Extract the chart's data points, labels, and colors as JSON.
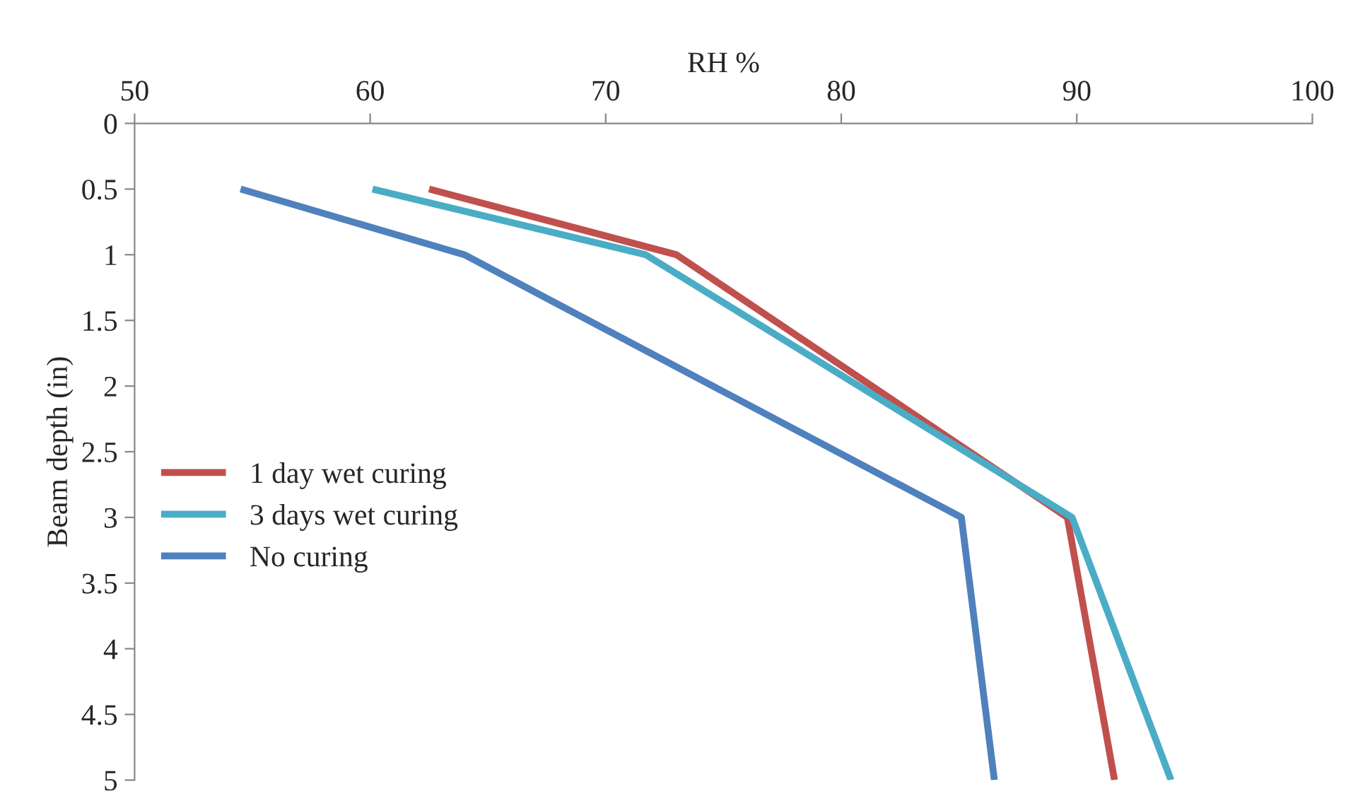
{
  "chart_data": {
    "type": "line",
    "xlabel": "RH %",
    "ylabel": "Beam depth (in)",
    "xlim": [
      50,
      100
    ],
    "xticks": [
      50,
      60,
      70,
      80,
      90,
      100
    ],
    "ylim": [
      5,
      0
    ],
    "yticks": [
      0,
      0.5,
      1,
      1.5,
      2,
      2.5,
      3,
      3.5,
      4,
      4.5,
      5
    ],
    "series": [
      {
        "name": "1 day wet curing",
        "color": "#c0504d",
        "x": [
          62.5,
          73.0,
          89.6,
          91.6
        ],
        "values": [
          0.5,
          1,
          3,
          5
        ]
      },
      {
        "name": "3 days wet curing",
        "color": "#4bacc6",
        "x": [
          60.1,
          71.7,
          89.8,
          94.0
        ],
        "values": [
          0.5,
          1,
          3,
          5
        ]
      },
      {
        "name": "No curing",
        "color": "#4f81bd",
        "x": [
          54.5,
          64.0,
          85.1,
          86.5
        ],
        "values": [
          0.5,
          1,
          3,
          5
        ]
      }
    ],
    "legend": "left",
    "grid": false,
    "marker": "none",
    "line_style": "solid"
  }
}
